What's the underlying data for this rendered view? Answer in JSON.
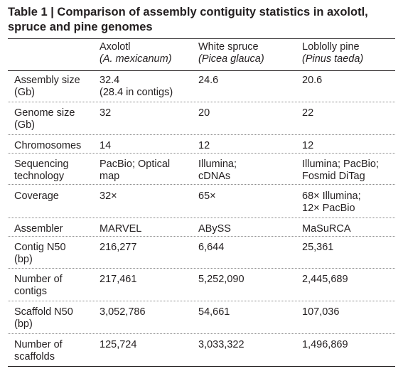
{
  "title": "Table 1 | Comparison of assembly contiguity statistics in axolotl, spruce and pine genomes",
  "columns": [
    {
      "name": "Axolotl",
      "species": "(A. mexicanum)"
    },
    {
      "name": "White spruce",
      "species": "(Picea glauca)"
    },
    {
      "name": "Loblolly pine",
      "species": "(Pinus taeda)"
    }
  ],
  "rows": [
    {
      "label": [
        "Assembly size",
        "(Gb)"
      ],
      "values": [
        [
          "32.4",
          "(28.4 in contigs)"
        ],
        [
          "24.6"
        ],
        [
          "20.6"
        ]
      ]
    },
    {
      "label": [
        "Genome size",
        "(Gb)"
      ],
      "values": [
        [
          "32"
        ],
        [
          "20"
        ],
        [
          "22"
        ]
      ]
    },
    {
      "label": [
        "Chromosomes"
      ],
      "values": [
        [
          "14"
        ],
        [
          "12"
        ],
        [
          "12"
        ]
      ]
    },
    {
      "label": [
        "Sequencing",
        "technology"
      ],
      "values": [
        [
          "PacBio; Optical",
          "map"
        ],
        [
          "Illumina;",
          "cDNAs"
        ],
        [
          "Illumina; PacBio;",
          "Fosmid DiTag"
        ]
      ]
    },
    {
      "label": [
        "Coverage"
      ],
      "values": [
        [
          "32×"
        ],
        [
          "65×"
        ],
        [
          "68× Illumina;",
          "12× PacBio"
        ]
      ]
    },
    {
      "label": [
        "Assembler"
      ],
      "values": [
        [
          "MARVEL"
        ],
        [
          "ABySS"
        ],
        [
          "MaSuRCA"
        ]
      ]
    },
    {
      "label": [
        "Contig N50",
        "(bp)"
      ],
      "values": [
        [
          "216,277"
        ],
        [
          "6,644"
        ],
        [
          "25,361"
        ]
      ]
    },
    {
      "label": [
        "Number of",
        "contigs"
      ],
      "values": [
        [
          "217,461"
        ],
        [
          "5,252,090"
        ],
        [
          "2,445,689"
        ]
      ]
    },
    {
      "label": [
        "Scaffold N50",
        "(bp)"
      ],
      "values": [
        [
          "3,052,786"
        ],
        [
          "54,661"
        ],
        [
          "107,036"
        ]
      ]
    },
    {
      "label": [
        "Number of",
        "scaffolds"
      ],
      "values": [
        [
          "125,724"
        ],
        [
          "3,033,322"
        ],
        [
          "1,496,869"
        ]
      ]
    }
  ]
}
